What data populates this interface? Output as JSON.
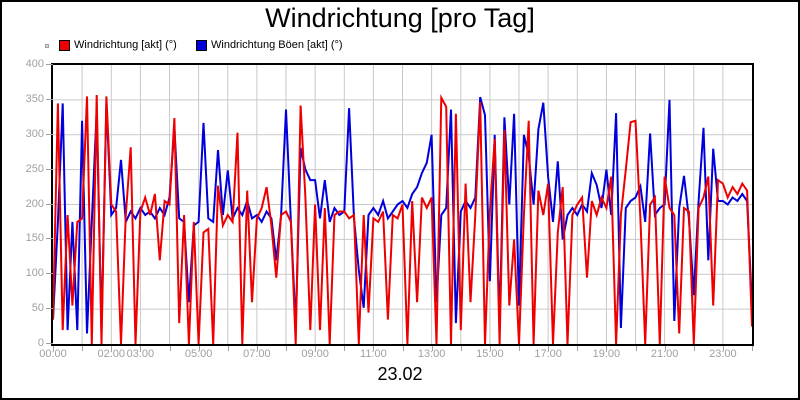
{
  "title": "Windrichtung [pro Tag]",
  "date_label": "23.02",
  "legend": {
    "marker_color": "#d8d8d8",
    "items": [
      {
        "label": "Windrichtung [akt] (°)",
        "color": "#ee0000"
      },
      {
        "label": "Windrichtung Böen [akt] (°)",
        "color": "#0000dd"
      }
    ]
  },
  "chart_data": {
    "type": "line",
    "title": "Windrichtung [pro Tag]",
    "xlabel": "23.02",
    "ylabel": "",
    "ylim": [
      0,
      400
    ],
    "ytick_step": 50,
    "x_hours": [
      0,
      24
    ],
    "interval_minutes": 10,
    "grid": "on",
    "grid_every_hours": 1,
    "tick_every_hours": 1,
    "grid_color": "#c9c9c9",
    "axis_label_color": "#a0a0a0",
    "x_tick_hours": [
      0,
      2,
      3,
      5,
      7,
      9,
      11,
      13,
      15,
      17,
      19,
      21,
      23
    ],
    "x_tick_labels": [
      "00:00",
      "02:00",
      "03:00",
      "05:00",
      "07:00",
      "09:00",
      "11:00",
      "13:00",
      "15:00",
      "17:00",
      "19:00",
      "21:00",
      "23:00"
    ],
    "legend_position": "top-left",
    "series": [
      {
        "name": "Windrichtung [akt] (°)",
        "color": "#ee0000",
        "values": [
          35,
          345,
          20,
          185,
          55,
          175,
          180,
          355,
          0,
          357,
          0,
          355,
          200,
          190,
          0,
          185,
          282,
          0,
          190,
          210,
          185,
          215,
          120,
          205,
          200,
          324,
          30,
          185,
          0,
          175,
          0,
          160,
          165,
          0,
          227,
          170,
          185,
          175,
          303,
          0,
          220,
          60,
          180,
          195,
          225,
          170,
          95,
          185,
          190,
          175,
          0,
          342,
          210,
          20,
          200,
          20,
          195,
          0,
          185,
          190,
          190,
          180,
          185,
          0,
          185,
          45,
          180,
          175,
          190,
          35,
          185,
          180,
          200,
          0,
          205,
          60,
          210,
          195,
          210,
          0,
          353,
          340,
          0,
          330,
          20,
          230,
          60,
          185,
          347,
          0,
          190,
          294,
          0,
          307,
          55,
          150,
          0,
          185,
          320,
          0,
          220,
          185,
          230,
          0,
          160,
          225,
          0,
          185,
          200,
          210,
          95,
          205,
          185,
          210,
          195,
          240,
          0,
          185,
          250,
          318,
          320,
          180,
          0,
          200,
          210,
          0,
          240,
          195,
          185,
          15,
          195,
          190,
          0,
          195,
          210,
          240,
          55,
          235,
          230,
          210,
          225,
          215,
          230,
          220,
          25
        ]
      },
      {
        "name": "Windrichtung Böen [akt] (°)",
        "color": "#0000dd",
        "values": [
          35,
          175,
          345,
          20,
          175,
          20,
          320,
          15,
          175,
          335,
          20,
          345,
          185,
          195,
          264,
          175,
          190,
          180,
          195,
          185,
          190,
          180,
          195,
          185,
          210,
          310,
          180,
          175,
          60,
          170,
          175,
          317,
          180,
          175,
          278,
          185,
          249,
          180,
          195,
          185,
          205,
          180,
          185,
          175,
          190,
          180,
          120,
          185,
          336,
          175,
          25,
          281,
          250,
          235,
          235,
          180,
          235,
          175,
          195,
          185,
          190,
          338,
          180,
          106,
          52,
          185,
          195,
          185,
          205,
          180,
          190,
          200,
          205,
          195,
          215,
          225,
          245,
          260,
          300,
          60,
          185,
          195,
          336,
          30,
          190,
          205,
          195,
          210,
          354,
          328,
          90,
          300,
          25,
          325,
          200,
          330,
          55,
          300,
          270,
          200,
          308,
          346,
          240,
          175,
          262,
          150,
          185,
          195,
          185,
          200,
          190,
          245,
          228,
          195,
          250,
          185,
          331,
          23,
          195,
          205,
          210,
          226,
          175,
          302,
          185,
          195,
          200,
          350,
          33,
          195,
          241,
          180,
          70,
          205,
          310,
          120,
          280,
          205,
          205,
          200,
          210,
          205,
          215,
          205,
          55
        ]
      }
    ]
  }
}
